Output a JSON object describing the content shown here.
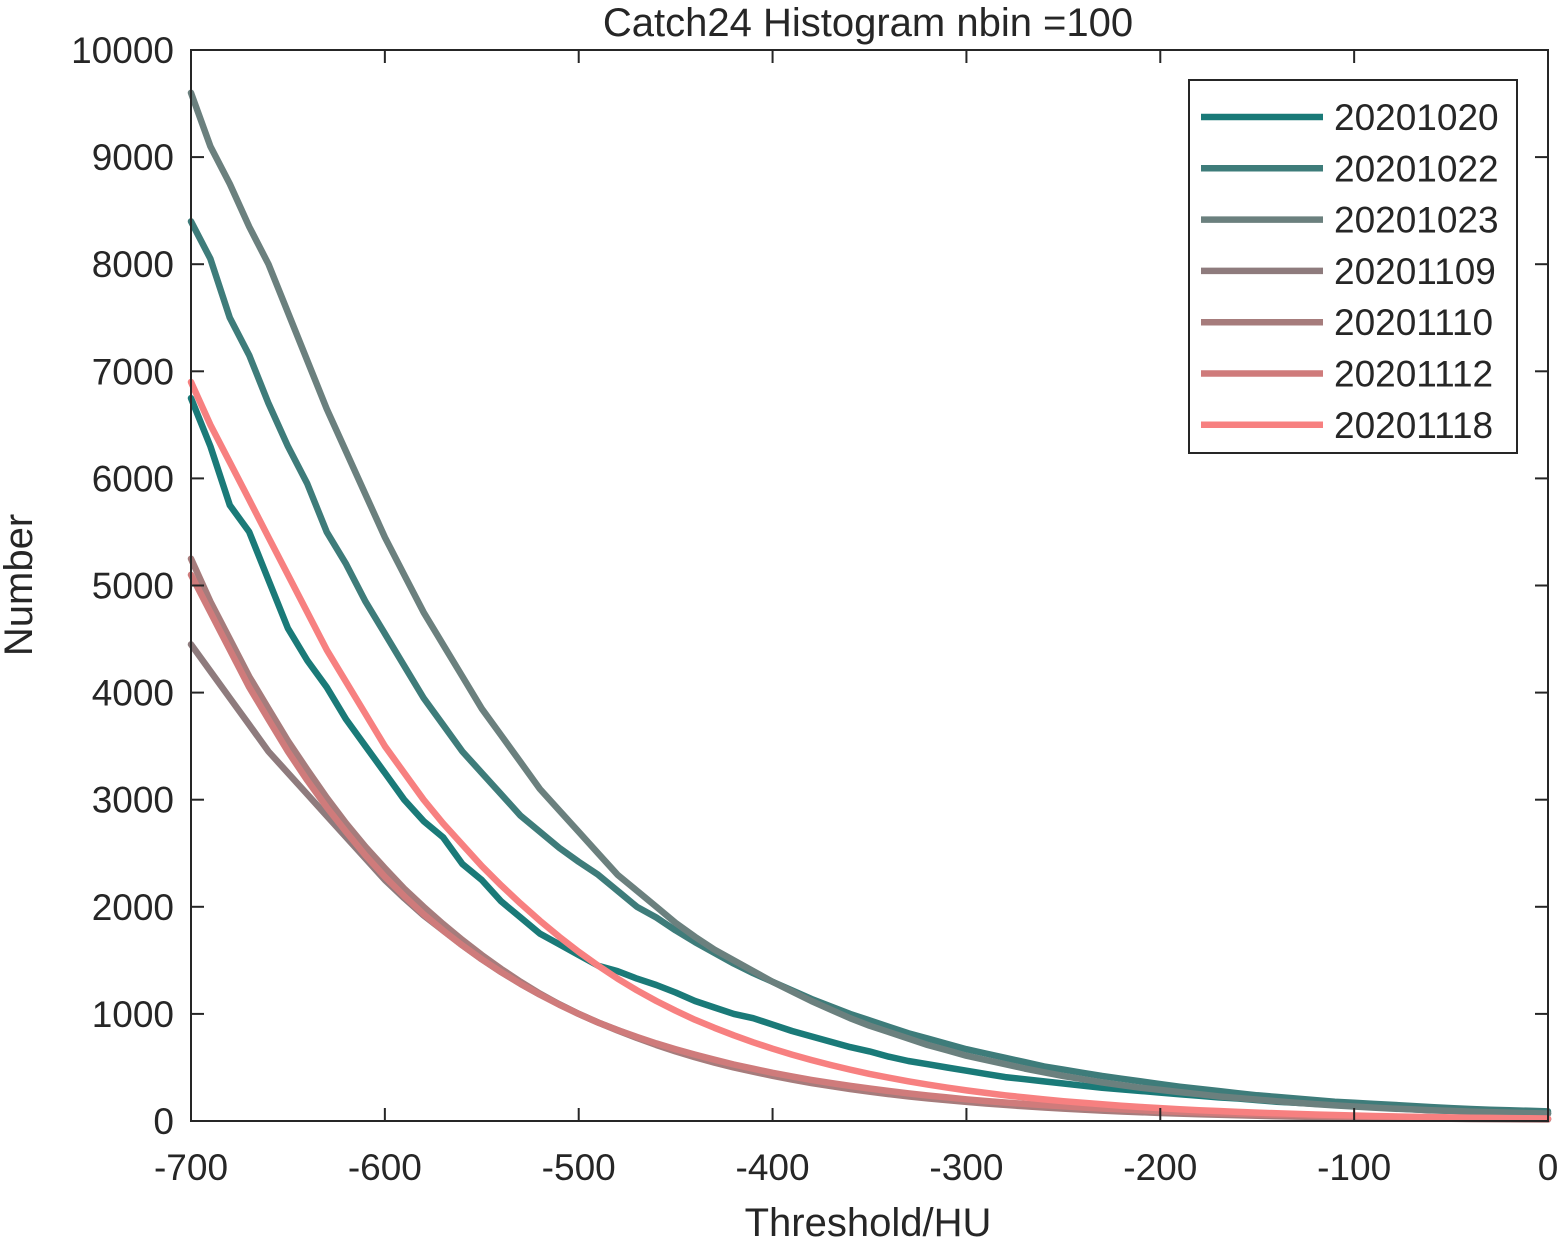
{
  "chart_data": {
    "type": "line",
    "title": "Catch24  Histogram nbin =100",
    "xlabel": "Threshold/HU",
    "ylabel": "Number",
    "xlim": [
      -700,
      0
    ],
    "ylim": [
      0,
      10000
    ],
    "xticks": [
      -700,
      -600,
      -500,
      -400,
      -300,
      -200,
      -100,
      0
    ],
    "yticks": [
      0,
      1000,
      2000,
      3000,
      4000,
      5000,
      6000,
      7000,
      8000,
      9000,
      10000
    ],
    "xtick_labels": [
      "-700",
      "-600",
      "-500",
      "-400",
      "-300",
      "-200",
      "-100",
      "0"
    ],
    "ytick_labels": [
      "0",
      "1000",
      "2000",
      "3000",
      "4000",
      "5000",
      "6000",
      "7000",
      "8000",
      "9000",
      "10000"
    ],
    "grid": false,
    "legend_position": "top-right",
    "x": [
      -700,
      -690,
      -680,
      -670,
      -660,
      -650,
      -640,
      -630,
      -620,
      -610,
      -600,
      -590,
      -580,
      -570,
      -560,
      -550,
      -540,
      -530,
      -520,
      -510,
      -500,
      -490,
      -480,
      -470,
      -460,
      -450,
      -440,
      -430,
      -420,
      -410,
      -400,
      -390,
      -380,
      -370,
      -360,
      -350,
      -340,
      -330,
      -320,
      -310,
      -300,
      -290,
      -280,
      -270,
      -260,
      -250,
      -240,
      -230,
      -220,
      -210,
      -200,
      -190,
      -180,
      -170,
      -160,
      -150,
      -140,
      -130,
      -120,
      -110,
      -100,
      -90,
      -80,
      -70,
      -60,
      -50,
      -40,
      -30,
      -20,
      -10,
      0
    ],
    "series": [
      {
        "name": "20201020",
        "color": "#1a7a78",
        "values": [
          6750,
          6300,
          5750,
          5500,
          5050,
          4600,
          4300,
          4050,
          3750,
          3500,
          3250,
          3000,
          2800,
          2650,
          2400,
          2250,
          2050,
          1900,
          1750,
          1650,
          1550,
          1450,
          1400,
          1330,
          1270,
          1200,
          1120,
          1060,
          1000,
          960,
          900,
          840,
          790,
          740,
          690,
          650,
          600,
          560,
          530,
          500,
          470,
          440,
          410,
          390,
          370,
          350,
          330,
          310,
          295,
          280,
          265,
          250,
          235,
          220,
          210,
          195,
          180,
          170,
          160,
          150,
          140,
          130,
          120,
          110,
          100,
          95,
          90,
          85,
          80,
          75,
          70
        ]
      },
      {
        "name": "20201022",
        "color": "#3e7c7a",
        "values": [
          8400,
          8050,
          7500,
          7150,
          6700,
          6300,
          5950,
          5500,
          5200,
          4850,
          4550,
          4250,
          3950,
          3700,
          3450,
          3250,
          3050,
          2850,
          2700,
          2550,
          2420,
          2300,
          2150,
          2000,
          1900,
          1780,
          1670,
          1570,
          1470,
          1380,
          1300,
          1220,
          1140,
          1070,
          1000,
          940,
          880,
          820,
          770,
          720,
          670,
          630,
          590,
          550,
          510,
          480,
          450,
          420,
          395,
          370,
          345,
          320,
          300,
          280,
          260,
          240,
          225,
          210,
          195,
          180,
          170,
          160,
          150,
          140,
          130,
          120,
          112,
          105,
          100,
          95,
          90
        ]
      },
      {
        "name": "20201023",
        "color": "#6b807e",
        "values": [
          9600,
          9100,
          8750,
          8350,
          8000,
          7550,
          7100,
          6650,
          6250,
          5850,
          5450,
          5100,
          4750,
          4450,
          4150,
          3850,
          3600,
          3350,
          3100,
          2900,
          2700,
          2500,
          2300,
          2150,
          2000,
          1850,
          1720,
          1600,
          1500,
          1400,
          1300,
          1210,
          1120,
          1040,
          960,
          890,
          830,
          770,
          710,
          660,
          610,
          570,
          530,
          490,
          455,
          420,
          390,
          360,
          335,
          310,
          290,
          270,
          250,
          230,
          215,
          200,
          185,
          170,
          158,
          146,
          135,
          125,
          116,
          108,
          100,
          94,
          88,
          83,
          78,
          74,
          70
        ]
      },
      {
        "name": "20201109",
        "color": "#8e7b7d",
        "values": [
          4450,
          4200,
          3950,
          3700,
          3450,
          3250,
          3050,
          2850,
          2650,
          2450,
          2250,
          2080,
          1920,
          1780,
          1640,
          1510,
          1390,
          1280,
          1180,
          1090,
          1000,
          920,
          850,
          780,
          720,
          660,
          610,
          560,
          515,
          475,
          440,
          405,
          375,
          345,
          320,
          295,
          272,
          250,
          230,
          212,
          195,
          180,
          166,
          153,
          141,
          130,
          120,
          111,
          102,
          94,
          87,
          80,
          74,
          68,
          63,
          58,
          54,
          50,
          46,
          42,
          39,
          36,
          33,
          31,
          29,
          27,
          25,
          23,
          21,
          20,
          18
        ]
      },
      {
        "name": "20201110",
        "color": "#a67c7c",
        "values": [
          5250,
          4850,
          4500,
          4150,
          3850,
          3550,
          3280,
          3020,
          2780,
          2560,
          2360,
          2170,
          2000,
          1840,
          1690,
          1550,
          1420,
          1300,
          1190,
          1090,
          1000,
          920,
          845,
          775,
          710,
          650,
          595,
          545,
          500,
          460,
          422,
          387,
          355,
          326,
          299,
          274,
          251,
          230,
          211,
          194,
          178,
          163,
          150,
          137,
          126,
          116,
          106,
          97,
          89,
          82,
          75,
          69,
          63,
          58,
          53,
          49,
          45,
          41,
          38,
          35,
          32,
          29,
          27,
          25,
          23,
          21,
          19,
          18,
          16,
          15,
          14
        ]
      },
      {
        "name": "20201112",
        "color": "#cf7b7b",
        "values": [
          5100,
          4750,
          4400,
          4050,
          3750,
          3450,
          3180,
          2930,
          2700,
          2480,
          2280,
          2100,
          1930,
          1780,
          1640,
          1510,
          1390,
          1280,
          1180,
          1085,
          1000,
          920,
          850,
          785,
          725,
          670,
          620,
          572,
          528,
          488,
          450,
          416,
          384,
          355,
          328,
          303,
          280,
          258,
          238,
          220,
          203,
          187,
          173,
          160,
          148,
          137,
          126,
          117,
          108,
          100,
          92,
          85,
          79,
          73,
          67,
          62,
          57,
          53,
          49,
          45,
          42,
          39,
          36,
          33,
          31,
          29,
          27,
          25,
          23,
          21,
          20
        ]
      },
      {
        "name": "20201118",
        "color": "#f78080",
        "values": [
          6900,
          6500,
          6150,
          5800,
          5450,
          5100,
          4750,
          4400,
          4100,
          3800,
          3500,
          3250,
          3000,
          2780,
          2580,
          2380,
          2200,
          2030,
          1870,
          1720,
          1580,
          1450,
          1330,
          1220,
          1120,
          1030,
          945,
          870,
          800,
          735,
          675,
          620,
          570,
          523,
          480,
          440,
          404,
          371,
          340,
          312,
          286,
          262,
          240,
          220,
          202,
          185,
          170,
          156,
          143,
          131,
          120,
          110,
          101,
          93,
          85,
          78,
          72,
          66,
          61,
          56,
          51,
          47,
          43,
          40,
          37,
          34,
          31,
          29,
          27,
          25,
          23
        ]
      }
    ]
  }
}
